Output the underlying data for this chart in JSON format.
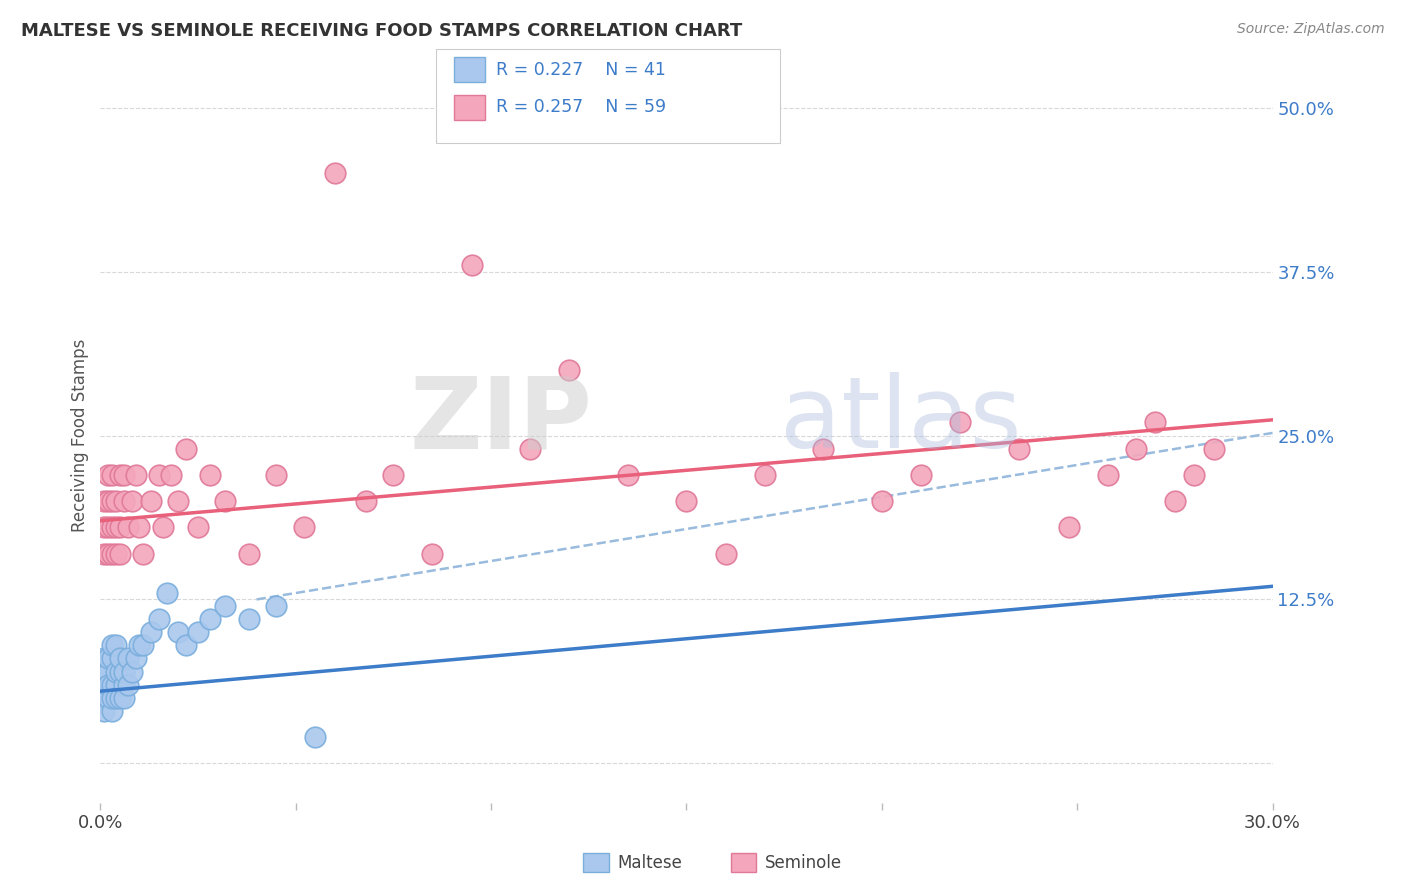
{
  "title": "MALTESE VS SEMINOLE RECEIVING FOOD STAMPS CORRELATION CHART",
  "source": "Source: ZipAtlas.com",
  "ylabel": "Receiving Food Stamps",
  "xlim": [
    0.0,
    0.3
  ],
  "ylim": [
    -0.03,
    0.53
  ],
  "xticks": [
    0.0,
    0.05,
    0.1,
    0.15,
    0.2,
    0.25,
    0.3
  ],
  "xticklabels": [
    "0.0%",
    "",
    "",
    "",
    "",
    "",
    "30.0%"
  ],
  "yticks_right": [
    0.0,
    0.125,
    0.25,
    0.375,
    0.5
  ],
  "yticklabels_right": [
    "",
    "12.5%",
    "25.0%",
    "37.5%",
    "50.0%"
  ],
  "background_color": "#ffffff",
  "grid_color": "#d8d8d8",
  "maltese_color": "#aac8ed",
  "seminole_color": "#f4a7bc",
  "maltese_edge": "#7aaedd",
  "seminole_edge": "#e07898",
  "blue_line_color": "#3d7cc9",
  "pink_line_color": "#e8607a",
  "dashed_line_color": "#99bbdd",
  "legend_r_maltese": "R = 0.227",
  "legend_n_maltese": "N = 41",
  "legend_r_seminole": "R = 0.257",
  "legend_n_seminole": "N = 59",
  "watermark_zip": "ZIP",
  "watermark_atlas": "atlas",
  "maltese_x": [
    0.001,
    0.001,
    0.001,
    0.001,
    0.001,
    0.002,
    0.002,
    0.002,
    0.002,
    0.003,
    0.003,
    0.003,
    0.003,
    0.003,
    0.004,
    0.004,
    0.004,
    0.004,
    0.005,
    0.005,
    0.005,
    0.006,
    0.006,
    0.006,
    0.007,
    0.007,
    0.008,
    0.009,
    0.01,
    0.011,
    0.013,
    0.015,
    0.017,
    0.02,
    0.022,
    0.025,
    0.028,
    0.032,
    0.038,
    0.045,
    0.055
  ],
  "maltese_y": [
    0.06,
    0.08,
    0.05,
    0.04,
    0.07,
    0.05,
    0.07,
    0.06,
    0.08,
    0.04,
    0.06,
    0.08,
    0.09,
    0.05,
    0.06,
    0.05,
    0.07,
    0.09,
    0.05,
    0.07,
    0.08,
    0.06,
    0.05,
    0.07,
    0.06,
    0.08,
    0.07,
    0.08,
    0.09,
    0.09,
    0.1,
    0.11,
    0.13,
    0.1,
    0.09,
    0.1,
    0.11,
    0.12,
    0.11,
    0.12,
    0.02
  ],
  "seminole_x": [
    0.001,
    0.001,
    0.001,
    0.002,
    0.002,
    0.002,
    0.002,
    0.003,
    0.003,
    0.003,
    0.003,
    0.004,
    0.004,
    0.004,
    0.005,
    0.005,
    0.005,
    0.006,
    0.006,
    0.007,
    0.008,
    0.009,
    0.01,
    0.011,
    0.013,
    0.015,
    0.016,
    0.018,
    0.02,
    0.022,
    0.025,
    0.028,
    0.032,
    0.038,
    0.045,
    0.052,
    0.06,
    0.068,
    0.075,
    0.085,
    0.095,
    0.11,
    0.12,
    0.135,
    0.15,
    0.16,
    0.17,
    0.185,
    0.2,
    0.21,
    0.22,
    0.235,
    0.248,
    0.258,
    0.265,
    0.27,
    0.275,
    0.28,
    0.285
  ],
  "seminole_y": [
    0.18,
    0.16,
    0.2,
    0.18,
    0.16,
    0.2,
    0.22,
    0.16,
    0.18,
    0.22,
    0.2,
    0.18,
    0.16,
    0.2,
    0.18,
    0.22,
    0.16,
    0.2,
    0.22,
    0.18,
    0.2,
    0.22,
    0.18,
    0.16,
    0.2,
    0.22,
    0.18,
    0.22,
    0.2,
    0.24,
    0.18,
    0.22,
    0.2,
    0.16,
    0.22,
    0.18,
    0.45,
    0.2,
    0.22,
    0.16,
    0.38,
    0.24,
    0.3,
    0.22,
    0.2,
    0.16,
    0.22,
    0.24,
    0.2,
    0.22,
    0.26,
    0.24,
    0.18,
    0.22,
    0.24,
    0.26,
    0.2,
    0.22,
    0.24
  ],
  "blue_line_x0": 0.0,
  "blue_line_y0": 0.055,
  "blue_line_x1": 0.3,
  "blue_line_y1": 0.135,
  "pink_line_x0": 0.0,
  "pink_line_y0": 0.185,
  "pink_line_x1": 0.3,
  "pink_line_y1": 0.262,
  "dashed_line_x0": 0.04,
  "dashed_line_y0": 0.125,
  "dashed_line_x1": 0.3,
  "dashed_line_y1": 0.252
}
